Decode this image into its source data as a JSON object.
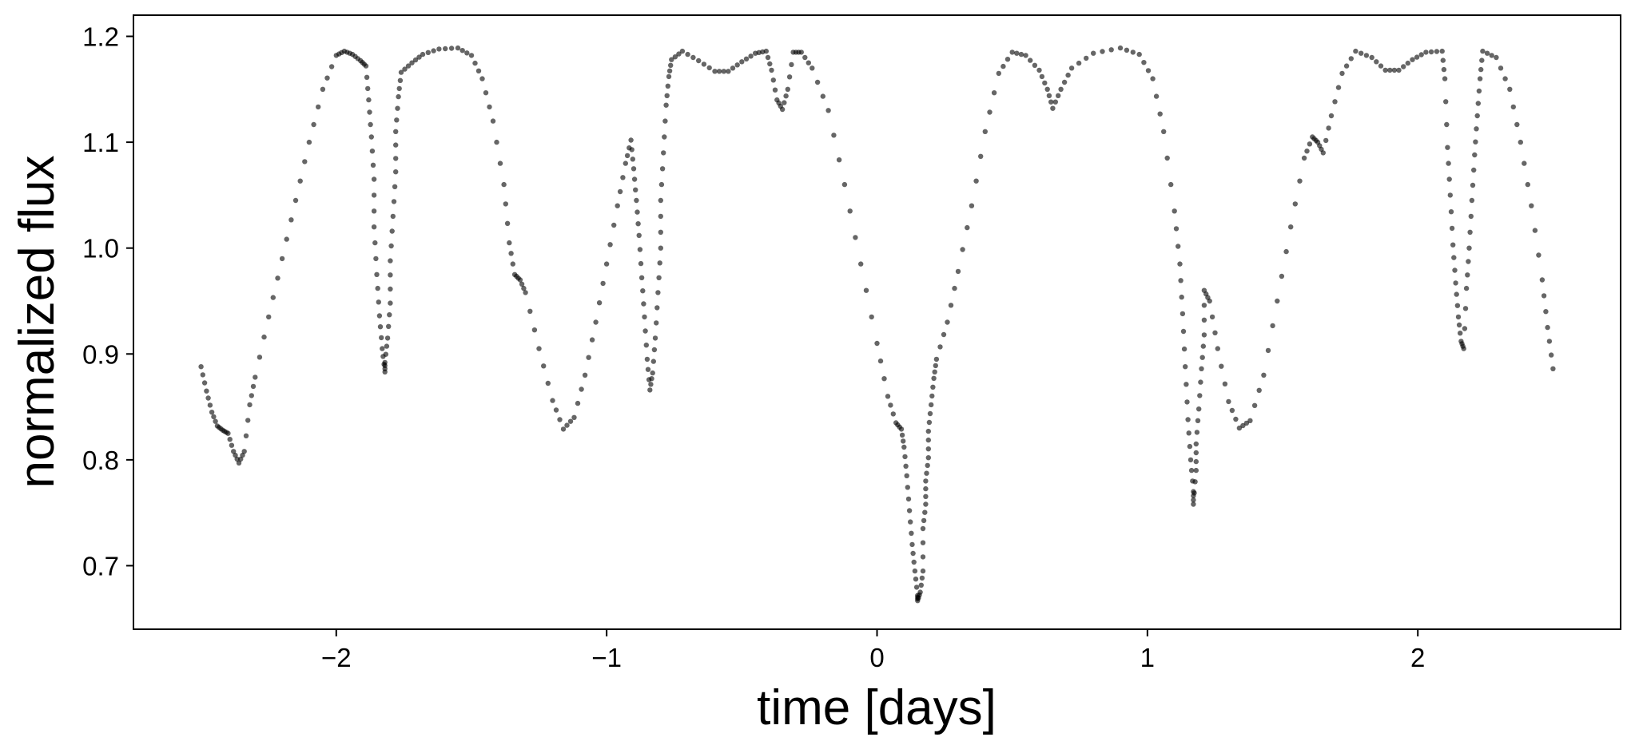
{
  "chart_data": {
    "type": "scatter",
    "title": "",
    "xlabel": "time [days]",
    "ylabel": "normalized flux",
    "xlim": [
      -2.75,
      2.75
    ],
    "ylim": [
      0.64,
      1.22
    ],
    "xticks": [
      -2,
      -1,
      0,
      1,
      2
    ],
    "xtick_labels": [
      "−2",
      "−1",
      "0",
      "1",
      "2"
    ],
    "yticks": [
      0.7,
      0.8,
      0.9,
      1.0,
      1.1,
      1.2
    ],
    "ytick_labels": [
      "0.7",
      "0.8",
      "0.9",
      "1.0",
      "1.1",
      "1.2"
    ],
    "grid": false,
    "marker_color": "#000000",
    "marker_opacity": 0.6,
    "series": [
      {
        "values": [
          [
            -2.5,
            0.888
          ],
          [
            -2.48,
            0.865
          ],
          [
            -2.46,
            0.845
          ],
          [
            -2.44,
            0.832
          ],
          [
            -2.42,
            0.828
          ],
          [
            -2.4,
            0.825
          ],
          [
            -2.38,
            0.808
          ],
          [
            -2.36,
            0.797
          ],
          [
            -2.34,
            0.808
          ],
          [
            -2.32,
            0.852
          ],
          [
            -2.3,
            0.878
          ],
          [
            -2.25,
            0.935
          ],
          [
            -2.2,
            0.99
          ],
          [
            -2.15,
            1.045
          ],
          [
            -2.1,
            1.1
          ],
          [
            -2.05,
            1.15
          ],
          [
            -2.0,
            1.182
          ],
          [
            -1.97,
            1.186
          ],
          [
            -1.94,
            1.183
          ],
          [
            -1.91,
            1.177
          ],
          [
            -1.89,
            1.172
          ],
          [
            -1.88,
            1.14
          ],
          [
            -1.87,
            1.105
          ],
          [
            -1.86,
            1.065
          ],
          [
            -1.86,
            1.02
          ],
          [
            -1.85,
            0.975
          ],
          [
            -1.84,
            0.936
          ],
          [
            -1.83,
            0.905
          ],
          [
            -1.82,
            0.883
          ],
          [
            -1.82,
            0.892
          ],
          [
            -1.81,
            0.915
          ],
          [
            -1.8,
            0.948
          ],
          [
            -1.8,
            0.988
          ],
          [
            -1.79,
            1.03
          ],
          [
            -1.78,
            1.072
          ],
          [
            -1.78,
            1.11
          ],
          [
            -1.77,
            1.143
          ],
          [
            -1.76,
            1.166
          ],
          [
            -1.72,
            1.175
          ],
          [
            -1.68,
            1.183
          ],
          [
            -1.62,
            1.188
          ],
          [
            -1.55,
            1.189
          ],
          [
            -1.5,
            1.182
          ],
          [
            -1.46,
            1.16
          ],
          [
            -1.42,
            1.12
          ],
          [
            -1.38,
            1.06
          ],
          [
            -1.36,
            1.005
          ],
          [
            -1.34,
            0.975
          ],
          [
            -1.32,
            0.97
          ],
          [
            -1.3,
            0.958
          ],
          [
            -1.25,
            0.905
          ],
          [
            -1.2,
            0.856
          ],
          [
            -1.16,
            0.829
          ],
          [
            -1.12,
            0.84
          ],
          [
            -1.08,
            0.88
          ],
          [
            -1.04,
            0.93
          ],
          [
            -1.0,
            0.985
          ],
          [
            -0.96,
            1.04
          ],
          [
            -0.93,
            1.08
          ],
          [
            -0.91,
            1.102
          ],
          [
            -0.9,
            1.075
          ],
          [
            -0.89,
            1.045
          ],
          [
            -0.88,
            1.012
          ],
          [
            -0.87,
            0.972
          ],
          [
            -0.86,
            0.935
          ],
          [
            -0.85,
            0.895
          ],
          [
            -0.84,
            0.866
          ],
          [
            -0.83,
            0.882
          ],
          [
            -0.82,
            0.915
          ],
          [
            -0.81,
            0.958
          ],
          [
            -0.8,
            1.0
          ],
          [
            -0.8,
            1.045
          ],
          [
            -0.79,
            1.09
          ],
          [
            -0.78,
            1.135
          ],
          [
            -0.77,
            1.162
          ],
          [
            -0.76,
            1.178
          ],
          [
            -0.72,
            1.186
          ],
          [
            -0.66,
            1.177
          ],
          [
            -0.6,
            1.167
          ],
          [
            -0.55,
            1.167
          ],
          [
            -0.5,
            1.176
          ],
          [
            -0.45,
            1.184
          ],
          [
            -0.41,
            1.186
          ],
          [
            -0.39,
            1.168
          ],
          [
            -0.37,
            1.14
          ],
          [
            -0.35,
            1.131
          ],
          [
            -0.33,
            1.15
          ],
          [
            -0.31,
            1.185
          ],
          [
            -0.28,
            1.185
          ],
          [
            -0.24,
            1.17
          ],
          [
            -0.18,
            1.13
          ],
          [
            -0.12,
            1.06
          ],
          [
            -0.06,
            0.985
          ],
          [
            0.0,
            0.91
          ],
          [
            0.04,
            0.86
          ],
          [
            0.07,
            0.835
          ],
          [
            0.09,
            0.829
          ],
          [
            0.1,
            0.812
          ],
          [
            0.11,
            0.785
          ],
          [
            0.12,
            0.752
          ],
          [
            0.13,
            0.72
          ],
          [
            0.14,
            0.695
          ],
          [
            0.15,
            0.672
          ],
          [
            0.15,
            0.667
          ],
          [
            0.16,
            0.675
          ],
          [
            0.17,
            0.695
          ],
          [
            0.17,
            0.735
          ],
          [
            0.18,
            0.758
          ],
          [
            0.18,
            0.78
          ],
          [
            0.19,
            0.802
          ],
          [
            0.19,
            0.827
          ],
          [
            0.2,
            0.852
          ],
          [
            0.21,
            0.877
          ],
          [
            0.22,
            0.895
          ],
          [
            0.26,
            0.93
          ],
          [
            0.3,
            0.978
          ],
          [
            0.35,
            1.04
          ],
          [
            0.4,
            1.11
          ],
          [
            0.45,
            1.165
          ],
          [
            0.5,
            1.185
          ],
          [
            0.55,
            1.182
          ],
          [
            0.6,
            1.168
          ],
          [
            0.63,
            1.15
          ],
          [
            0.65,
            1.132
          ],
          [
            0.68,
            1.15
          ],
          [
            0.72,
            1.17
          ],
          [
            0.8,
            1.184
          ],
          [
            0.9,
            1.189
          ],
          [
            0.97,
            1.183
          ],
          [
            1.02,
            1.16
          ],
          [
            1.06,
            1.11
          ],
          [
            1.1,
            1.035
          ],
          [
            1.12,
            0.985
          ],
          [
            1.13,
            0.938
          ],
          [
            1.14,
            0.888
          ],
          [
            1.15,
            0.838
          ],
          [
            1.16,
            0.8
          ],
          [
            1.17,
            0.77
          ],
          [
            1.17,
            0.758
          ],
          [
            1.18,
            0.79
          ],
          [
            1.18,
            0.815
          ],
          [
            1.19,
            0.848
          ],
          [
            1.2,
            0.886
          ],
          [
            1.21,
            0.918
          ],
          [
            1.21,
            0.96
          ],
          [
            1.23,
            0.95
          ],
          [
            1.26,
            0.905
          ],
          [
            1.3,
            0.855
          ],
          [
            1.34,
            0.83
          ],
          [
            1.38,
            0.837
          ],
          [
            1.43,
            0.88
          ],
          [
            1.48,
            0.95
          ],
          [
            1.53,
            1.02
          ],
          [
            1.58,
            1.085
          ],
          [
            1.61,
            1.105
          ],
          [
            1.63,
            1.1
          ],
          [
            1.65,
            1.09
          ],
          [
            1.68,
            1.125
          ],
          [
            1.72,
            1.165
          ],
          [
            1.77,
            1.186
          ],
          [
            1.83,
            1.18
          ],
          [
            1.88,
            1.168
          ],
          [
            1.93,
            1.168
          ],
          [
            1.98,
            1.178
          ],
          [
            2.03,
            1.185
          ],
          [
            2.09,
            1.186
          ],
          [
            2.1,
            1.16
          ],
          [
            2.11,
            1.095
          ],
          [
            2.12,
            1.05
          ],
          [
            2.13,
            1.003
          ],
          [
            2.14,
            0.967
          ],
          [
            2.15,
            0.935
          ],
          [
            2.16,
            0.912
          ],
          [
            2.17,
            0.905
          ],
          [
            2.18,
            0.962
          ],
          [
            2.19,
            1.0
          ],
          [
            2.2,
            1.045
          ],
          [
            2.21,
            1.088
          ],
          [
            2.22,
            1.125
          ],
          [
            2.23,
            1.16
          ],
          [
            2.24,
            1.186
          ],
          [
            2.29,
            1.18
          ],
          [
            2.34,
            1.15
          ],
          [
            2.38,
            1.1
          ],
          [
            2.42,
            1.04
          ],
          [
            2.46,
            0.97
          ],
          [
            2.48,
            0.925
          ],
          [
            2.5,
            0.886
          ]
        ]
      }
    ]
  }
}
